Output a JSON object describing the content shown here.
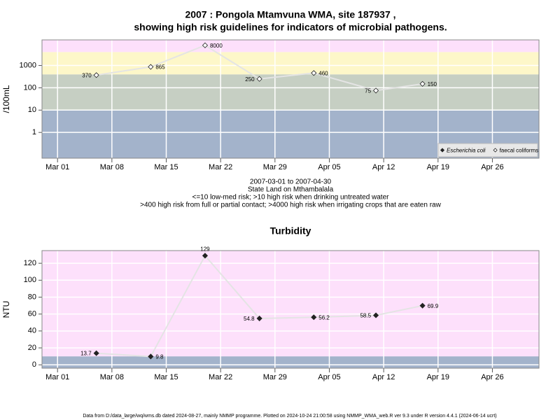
{
  "chart_data": [
    {
      "type": "line",
      "title": [
        "2007 : Pongola Mtamvuna WMA, site 187937 ,",
        "showing high risk guidelines for indicators of microbial pathogens."
      ],
      "ylabel": "/100mL",
      "log_scale": true,
      "x": [
        "2007-03-06",
        "2007-03-13",
        "2007-03-20",
        "2007-03-27",
        "2007-04-03",
        "2007-04-11",
        "2007-04-17"
      ],
      "series": [
        {
          "name": "Escherichia coli",
          "color": "#222222",
          "marker": "filled",
          "values": [
            null,
            null,
            null,
            null,
            null,
            null,
            null
          ]
        },
        {
          "name": "faecal coliforms",
          "color": "#222222",
          "marker": "open",
          "values": [
            370,
            865,
            8000,
            250,
            460,
            75,
            150
          ]
        }
      ],
      "line_color": "#e4e4e4",
      "xlim": [
        "2007-02-27",
        "2007-05-02"
      ],
      "xticks": [
        {
          "value": "2007-03-01",
          "label": "Mar 01"
        },
        {
          "value": "2007-03-08",
          "label": "Mar 08"
        },
        {
          "value": "2007-03-15",
          "label": "Mar 15"
        },
        {
          "value": "2007-03-22",
          "label": "Mar 22"
        },
        {
          "value": "2007-03-29",
          "label": "Mar 29"
        },
        {
          "value": "2007-04-05",
          "label": "Apr 05"
        },
        {
          "value": "2007-04-12",
          "label": "Apr 12"
        },
        {
          "value": "2007-04-19",
          "label": "Apr 19"
        },
        {
          "value": "2007-04-26",
          "label": "Apr 26"
        }
      ],
      "ylim": [
        0.07,
        14000
      ],
      "yticks": [
        1,
        10,
        100,
        1000
      ],
      "band_breaks": [
        10,
        400,
        4000
      ],
      "band_colors": [
        "#a3b3cb",
        "#c6cfc3",
        "#fdf7c9",
        "#fde0fb"
      ],
      "grid": true,
      "legend": "bottom-right",
      "notes": [
        "2007-03-01 to 2007-04-30",
        "State Land on Mthambalala",
        "<=10 low-med risk; >10 high risk when drinking untreated water",
        ">400 high risk from full or partial contact; >4000 high risk when irrigating crops that are eaten raw"
      ]
    },
    {
      "type": "line",
      "title": [
        "Turbidity"
      ],
      "ylabel": "NTU",
      "log_scale": false,
      "x": [
        "2007-03-06",
        "2007-03-13",
        "2007-03-20",
        "2007-03-27",
        "2007-04-03",
        "2007-04-11",
        "2007-04-17"
      ],
      "series": [
        {
          "name": "Turbidity",
          "color": "#222222",
          "marker": "filled",
          "values": [
            13.7,
            9.8,
            129,
            54.8,
            56.2,
            58.5,
            69.9
          ]
        }
      ],
      "line_color": "#e4e4e4",
      "xlim": [
        "2007-02-27",
        "2007-05-02"
      ],
      "xticks": [
        {
          "value": "2007-03-01",
          "label": "Mar 01"
        },
        {
          "value": "2007-03-08",
          "label": "Mar 08"
        },
        {
          "value": "2007-03-15",
          "label": "Mar 15"
        },
        {
          "value": "2007-03-22",
          "label": "Mar 22"
        },
        {
          "value": "2007-03-29",
          "label": "Mar 29"
        },
        {
          "value": "2007-04-05",
          "label": "Apr 05"
        },
        {
          "value": "2007-04-12",
          "label": "Apr 12"
        },
        {
          "value": "2007-04-19",
          "label": "Apr 19"
        },
        {
          "value": "2007-04-26",
          "label": "Apr 26"
        }
      ],
      "ylim": [
        -4,
        135
      ],
      "yticks": [
        0,
        20,
        40,
        60,
        80,
        100,
        120
      ],
      "band_breaks": [
        10
      ],
      "band_colors": [
        "#a3b3cb",
        "#fde0fb"
      ],
      "grid": true,
      "legend": null
    }
  ],
  "footer": "Data from D:/data_large/wq/wms.db dated 2024-08-27, mainly NMMP programme. Plotted on 2024-10-24 21:00:58 using NMMP_WMA_web.R ver 9.3 under R version 4.4.1 (2024-06-14 ucrt)"
}
